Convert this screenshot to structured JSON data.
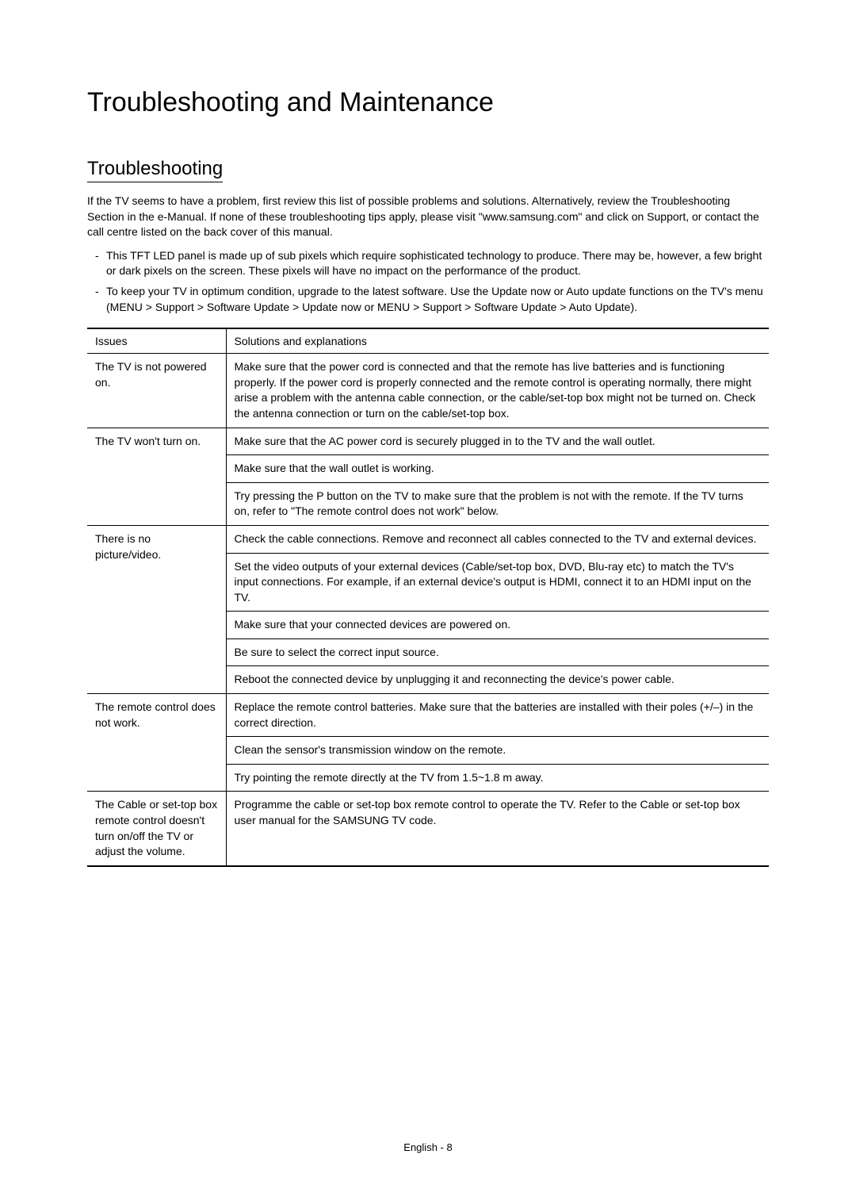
{
  "mainTitle": "Troubleshooting and Maintenance",
  "sectionTitle": "Troubleshooting",
  "introText": "If the TV seems to have a problem, first review this list of possible problems and solutions. Alternatively, review the Troubleshooting Section in the e-Manual. If none of these troubleshooting tips apply, please visit \"www.samsung.com\" and click on Support, or contact the call centre listed on the back cover of this manual.",
  "bullets": [
    "This TFT LED panel is made up of sub pixels which require sophisticated technology to produce. There may be, however, a few bright or dark pixels on the screen. These pixels will have no impact on the performance of the product.",
    "To keep your TV in optimum condition, upgrade to the latest software. Use the Update now or Auto update functions on the TV's menu (MENU > Support > Software Update > Update now or MENU > Support > Software Update > Auto Update)."
  ],
  "tableHeaders": {
    "issues": "Issues",
    "solutions": "Solutions and explanations"
  },
  "rows": [
    {
      "issue": "The TV is not powered on.",
      "solutions": [
        "Make sure that the power cord is connected and that the remote has live batteries and is functioning properly. If the power cord is properly connected and the remote control is operating normally, there might arise a problem with the antenna cable connection, or the cable/set-top box might not be turned on. Check the antenna connection or turn on the cable/set-top box."
      ]
    },
    {
      "issue": "The TV won't turn on.",
      "solutions": [
        "Make sure that the AC power cord is securely plugged in to the TV and the wall outlet.",
        "Make sure that the wall outlet is working.",
        "Try pressing the P button on the TV to make sure that the problem is not with the remote. If the TV turns on, refer to \"The remote control does not work\" below."
      ]
    },
    {
      "issue": "There is no picture/video.",
      "solutions": [
        "Check the cable connections. Remove and reconnect all cables connected to the TV and external devices.",
        "Set the video outputs of your external devices (Cable/set-top box, DVD, Blu-ray etc) to match the TV's input connections. For example, if an external device's output is HDMI, connect it to an HDMI input on the TV.",
        "Make sure that your connected devices are powered on.",
        "Be sure to select the correct input source.",
        "Reboot the connected device by unplugging it and reconnecting the device's power cable."
      ]
    },
    {
      "issue": "The remote control does not work.",
      "solutions": [
        "Replace the remote control batteries. Make sure that the batteries are installed with their poles (+/–) in the correct direction.",
        "Clean the sensor's transmission window on the remote.",
        "Try pointing the remote directly at the TV from 1.5~1.8 m away."
      ]
    },
    {
      "issue": "The Cable or set-top box remote control doesn't turn on/off the TV or adjust the volume.",
      "solutions": [
        "Programme the cable or set-top box remote control to operate the TV. Refer to the Cable or set-top box user manual for the SAMSUNG TV code."
      ]
    }
  ],
  "footer": "English - 8"
}
